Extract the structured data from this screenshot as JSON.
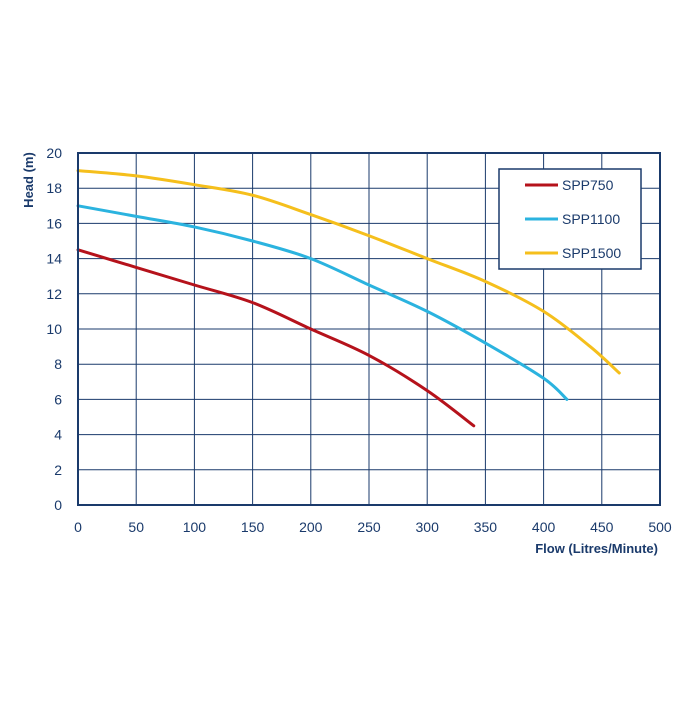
{
  "colors": {
    "axis": "#1a3a6b",
    "grid": "#1a3a6b",
    "text": "#1a3a6b",
    "background": "#ffffff"
  },
  "chart_data": {
    "type": "line",
    "title": "",
    "xlabel": "Flow (Litres/Minute)",
    "ylabel": "Head (m)",
    "xlim": [
      0,
      500
    ],
    "ylim": [
      0,
      20
    ],
    "xticks": [
      0,
      50,
      100,
      150,
      200,
      250,
      300,
      350,
      400,
      450,
      500
    ],
    "yticks": [
      0,
      2,
      4,
      6,
      8,
      10,
      12,
      14,
      16,
      18,
      20
    ],
    "grid": true,
    "legend_position": "top-right",
    "series": [
      {
        "name": "SPP750",
        "color": "#b5121b",
        "x": [
          0,
          50,
          100,
          150,
          200,
          250,
          300,
          340
        ],
        "y": [
          14.5,
          13.5,
          12.5,
          11.5,
          10.0,
          8.5,
          6.5,
          4.5
        ]
      },
      {
        "name": "SPP1100",
        "color": "#2bb3df",
        "x": [
          0,
          50,
          100,
          150,
          200,
          250,
          300,
          350,
          400,
          420
        ],
        "y": [
          17.0,
          16.4,
          15.8,
          15.0,
          14.0,
          12.5,
          11.0,
          9.2,
          7.2,
          6.0
        ]
      },
      {
        "name": "SPP1500",
        "color": "#f5bf1c",
        "x": [
          0,
          50,
          100,
          150,
          200,
          250,
          300,
          350,
          400,
          440,
          465
        ],
        "y": [
          19.0,
          18.7,
          18.2,
          17.6,
          16.5,
          15.3,
          14.0,
          12.7,
          11.0,
          9.0,
          7.5
        ]
      }
    ]
  }
}
